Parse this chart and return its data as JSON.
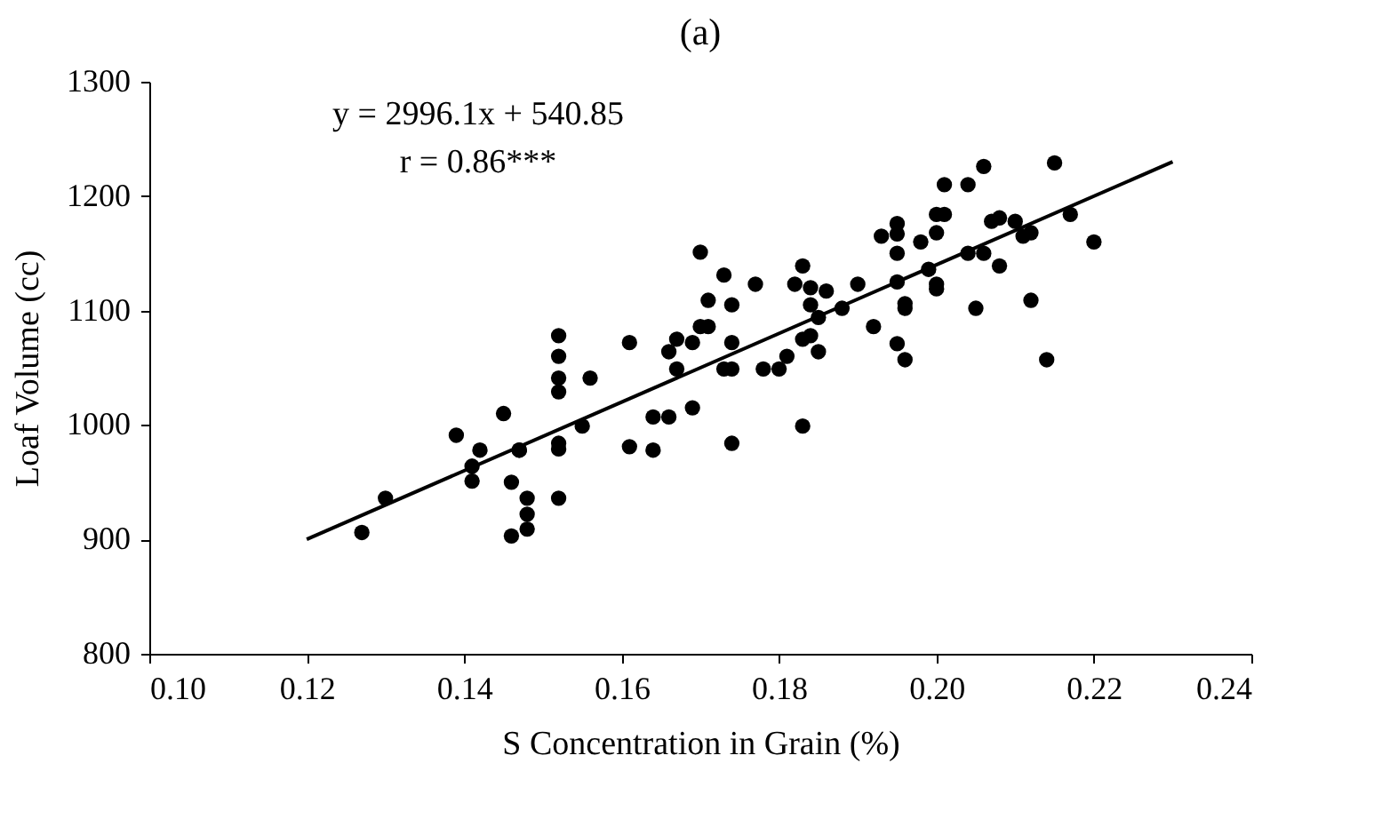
{
  "chart_data": {
    "type": "scatter",
    "title": "(a)",
    "xlabel": "S Concentration in Grain (%)",
    "ylabel": "Loaf Volume (cc)",
    "annotations": [
      "y = 2996.1x + 540.85",
      "r = 0.86***"
    ],
    "xlim": [
      0.1,
      0.24
    ],
    "xticks": [
      {
        "value": 0.1,
        "label": "0.10"
      },
      {
        "value": 0.12,
        "label": "0.12"
      },
      {
        "value": 0.14,
        "label": "0.14"
      },
      {
        "value": 0.16,
        "label": "0.16"
      },
      {
        "value": 0.18,
        "label": "0.18"
      },
      {
        "value": 0.2,
        "label": "0.20"
      },
      {
        "value": 0.22,
        "label": "0.22"
      },
      {
        "value": 0.24,
        "label": "0.24"
      }
    ],
    "ylim": [
      800,
      1300
    ],
    "yticks": [
      800,
      900,
      1000,
      1100,
      1200,
      1300
    ],
    "grid": false,
    "marker": "circle",
    "series": [
      {
        "color": "#000000",
        "x": [
          0.127,
          0.13,
          0.139,
          0.141,
          0.141,
          0.142,
          0.145,
          0.146,
          0.146,
          0.147,
          0.147,
          0.148,
          0.148,
          0.148,
          0.152,
          0.152,
          0.152,
          0.152,
          0.152,
          0.152,
          0.152,
          0.155,
          0.156,
          0.161,
          0.161,
          0.164,
          0.164,
          0.166,
          0.166,
          0.167,
          0.167,
          0.169,
          0.169,
          0.17,
          0.17,
          0.171,
          0.171,
          0.173,
          0.173,
          0.174,
          0.174,
          0.174,
          0.174,
          0.177,
          0.178,
          0.18,
          0.181,
          0.182,
          0.183,
          0.183,
          0.183,
          0.184,
          0.184,
          0.184,
          0.185,
          0.185,
          0.186,
          0.188,
          0.19,
          0.206,
          0.215,
          0.201,
          0.204,
          0.2,
          0.201,
          0.195,
          0.193,
          0.195,
          0.198,
          0.2,
          0.195,
          0.207,
          0.208,
          0.21,
          0.211,
          0.212,
          0.217,
          0.22,
          0.204,
          0.206,
          0.208,
          0.199,
          0.2,
          0.2,
          0.195,
          0.196,
          0.196,
          0.205,
          0.212,
          0.192,
          0.195,
          0.196,
          0.214
        ],
        "values": [
          906,
          936,
          991,
          964,
          951,
          978,
          1010,
          903,
          950,
          978,
          978,
          909,
          936,
          922,
          1060,
          1041,
          1029,
          984,
          979,
          936,
          1078,
          999,
          1041,
          981,
          1072,
          1007,
          978,
          1007,
          1064,
          1049,
          1075,
          1072,
          1015,
          1086,
          1151,
          1086,
          1109,
          1131,
          1049,
          1072,
          1049,
          1105,
          984,
          1123,
          1049,
          1049,
          1060,
          1123,
          999,
          1075,
          1139,
          1105,
          1078,
          1120,
          1094,
          1064,
          1117,
          1102,
          1123,
          1226,
          1229,
          1210,
          1210,
          1184,
          1184,
          1176,
          1165,
          1167,
          1160,
          1168,
          1150,
          1178,
          1181,
          1178,
          1165,
          1168,
          1184,
          1160,
          1150,
          1150,
          1139,
          1136,
          1123,
          1119,
          1125,
          1106,
          1102,
          1102,
          1109,
          1086,
          1071,
          1057,
          1057
        ]
      },
      {
        "type": "line",
        "color": "#000000",
        "marker": "none",
        "line_style": "solid",
        "x": [
          0.12,
          0.23
        ],
        "values": [
          900,
          1230
        ]
      }
    ]
  }
}
